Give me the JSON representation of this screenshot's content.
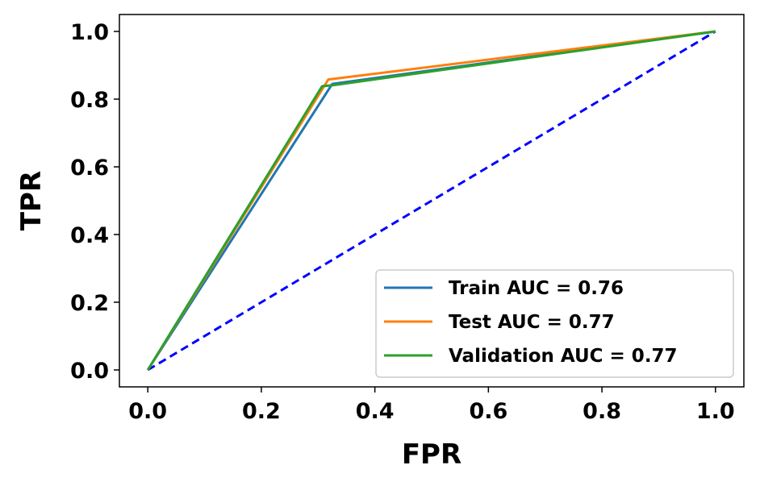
{
  "chart_data": {
    "type": "line",
    "title": "",
    "xlabel": "FPR",
    "ylabel": "TPR",
    "xlim": [
      -0.05,
      1.05
    ],
    "ylim": [
      -0.05,
      1.05
    ],
    "xticks": [
      "0.0",
      "0.2",
      "0.4",
      "0.6",
      "0.8",
      "1.0"
    ],
    "yticks": [
      "0.0",
      "0.2",
      "0.4",
      "0.6",
      "0.8",
      "1.0"
    ],
    "grid": false,
    "legend_position": "lower-right",
    "series": [
      {
        "name": "Train AUC = 0.76",
        "color": "#1f77b4",
        "x": [
          0,
          0.325,
          1
        ],
        "y": [
          0,
          0.845,
          1
        ]
      },
      {
        "name": "Test AUC = 0.77",
        "color": "#ff7f0e",
        "x": [
          0,
          0.318,
          1
        ],
        "y": [
          0,
          0.858,
          1
        ]
      },
      {
        "name": "Validation AUC = 0.77",
        "color": "#2ca02c",
        "x": [
          0,
          0.307,
          0.33,
          1
        ],
        "y": [
          0,
          0.838,
          0.842,
          1
        ]
      }
    ],
    "reference_line": {
      "color": "#0000ff",
      "style": "dashed",
      "x": [
        0,
        1
      ],
      "y": [
        0,
        1
      ]
    }
  }
}
